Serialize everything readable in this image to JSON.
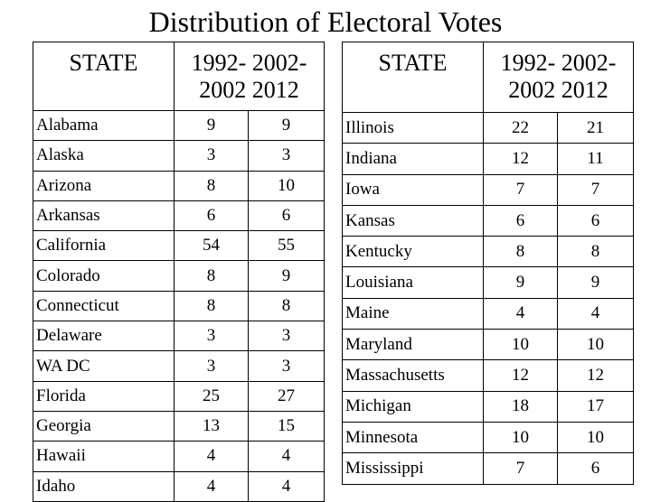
{
  "title": "Distribution of Electoral Votes",
  "headers": {
    "state": "STATE",
    "period1_top": "1992-",
    "period1_bottom": "2002",
    "period2_top": "2002-",
    "period2_bottom": "2012"
  },
  "left_table": [
    {
      "state": "Alabama",
      "v1992_2002": "9",
      "v2002_2012": "9"
    },
    {
      "state": "Alaska",
      "v1992_2002": "3",
      "v2002_2012": "3"
    },
    {
      "state": "Arizona",
      "v1992_2002": "8",
      "v2002_2012": "10"
    },
    {
      "state": "Arkansas",
      "v1992_2002": "6",
      "v2002_2012": "6"
    },
    {
      "state": "California",
      "v1992_2002": "54",
      "v2002_2012": "55"
    },
    {
      "state": "Colorado",
      "v1992_2002": "8",
      "v2002_2012": "9"
    },
    {
      "state": "Connecticut",
      "v1992_2002": "8",
      "v2002_2012": "8"
    },
    {
      "state": "Delaware",
      "v1992_2002": "3",
      "v2002_2012": "3"
    },
    {
      "state": "WA DC",
      "v1992_2002": "3",
      "v2002_2012": "3"
    },
    {
      "state": "Florida",
      "v1992_2002": "25",
      "v2002_2012": "27"
    },
    {
      "state": "Georgia",
      "v1992_2002": "13",
      "v2002_2012": "15"
    },
    {
      "state": "Hawaii",
      "v1992_2002": "4",
      "v2002_2012": "4"
    },
    {
      "state": "Idaho",
      "v1992_2002": "4",
      "v2002_2012": "4"
    }
  ],
  "right_table": [
    {
      "state": "Illinois",
      "v1992_2002": "22",
      "v2002_2012": "21"
    },
    {
      "state": "Indiana",
      "v1992_2002": "12",
      "v2002_2012": "11"
    },
    {
      "state": "Iowa",
      "v1992_2002": "7",
      "v2002_2012": "7"
    },
    {
      "state": "Kansas",
      "v1992_2002": "6",
      "v2002_2012": "6"
    },
    {
      "state": "Kentucky",
      "v1992_2002": "8",
      "v2002_2012": "8"
    },
    {
      "state": "Louisiana",
      "v1992_2002": "9",
      "v2002_2012": "9"
    },
    {
      "state": "Maine",
      "v1992_2002": "4",
      "v2002_2012": "4"
    },
    {
      "state": "Maryland",
      "v1992_2002": "10",
      "v2002_2012": "10"
    },
    {
      "state": "Massachusetts",
      "v1992_2002": "12",
      "v2002_2012": "12"
    },
    {
      "state": "Michigan",
      "v1992_2002": "18",
      "v2002_2012": "17"
    },
    {
      "state": "Minnesota",
      "v1992_2002": "10",
      "v2002_2012": "10"
    },
    {
      "state": "Mississippi",
      "v1992_2002": "7",
      "v2002_2012": "6"
    }
  ]
}
